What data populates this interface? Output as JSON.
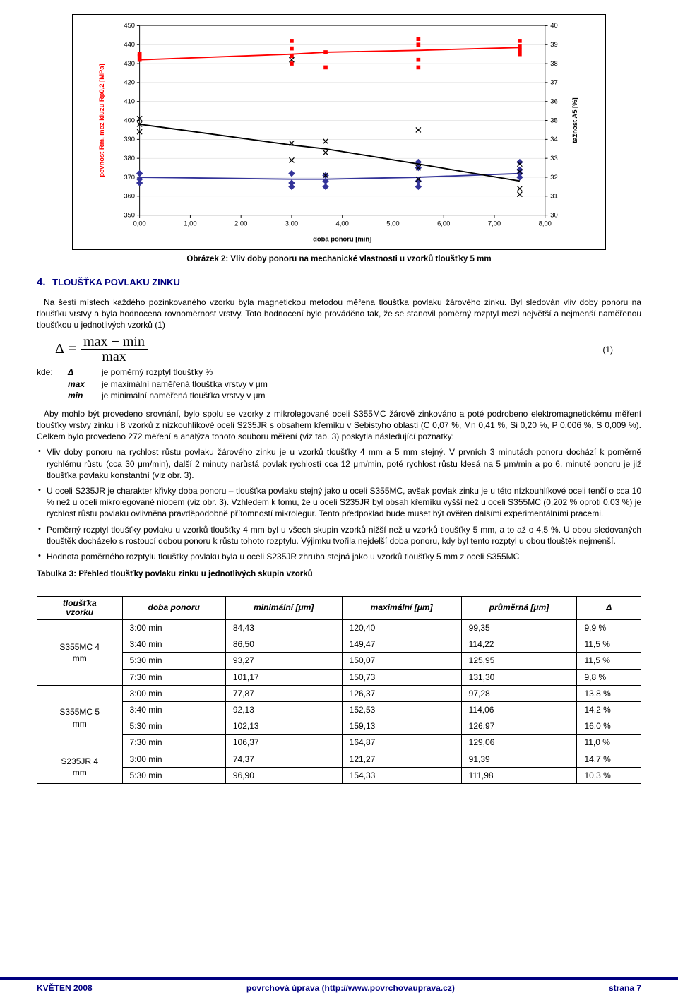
{
  "chart": {
    "type": "dual-axis-line-scatter",
    "xlabel": "doba ponoru [min]",
    "ylabel_left": "pevnost Rm, mez kluzu Rp0,2 [MPa]",
    "ylabel_right": "tažnost A5 [%]",
    "background_color": "#ffffff",
    "plot_border_color": "#000000",
    "grid_color": "#d0d0d0",
    "axis_font_size": 10,
    "label_font_size": 10,
    "ylabel_left_color": "#ff0000",
    "ylabel_right_color": "#000000",
    "xlim": [
      0.0,
      8.0
    ],
    "xtick_step": 1.0,
    "xtick_labels": [
      "0,00",
      "1,00",
      "2,00",
      "3,00",
      "4,00",
      "5,00",
      "6,00",
      "7,00",
      "8,00"
    ],
    "ylim_left": [
      350,
      450
    ],
    "ytick_left_step": 10,
    "ylim_right": [
      30,
      40
    ],
    "ytick_right_step": 1,
    "series": [
      {
        "name": "Rm",
        "axis": "left",
        "marker": "square",
        "marker_size": 6,
        "marker_color": "#ff0000",
        "line_color": "#ff0000",
        "line_width": 2,
        "x": [
          0.0,
          3.0,
          3.67,
          5.5,
          7.5
        ],
        "y_line": [
          432,
          435,
          436,
          437,
          438.5
        ],
        "y_points": [
          [
            432,
            434,
            435
          ],
          [
            430,
            434,
            438,
            442
          ],
          [
            428,
            436
          ],
          [
            428,
            432,
            440,
            443
          ],
          [
            435,
            437,
            439,
            442
          ]
        ]
      },
      {
        "name": "Rp0.2",
        "axis": "left",
        "marker": "diamond",
        "marker_size": 7,
        "marker_color": "#333399",
        "line_color": "#333399",
        "line_width": 2,
        "x": [
          0.0,
          3.0,
          3.67,
          5.5,
          7.5
        ],
        "y_line": [
          370,
          369,
          369,
          370,
          372
        ],
        "y_points": [
          [
            367,
            369,
            372
          ],
          [
            365,
            367,
            372
          ],
          [
            365,
            368,
            371
          ],
          [
            365,
            368,
            375,
            378
          ],
          [
            370,
            372,
            374,
            378
          ]
        ]
      },
      {
        "name": "A5",
        "axis": "right",
        "marker": "x",
        "marker_size": 6,
        "marker_color": "#000000",
        "line_color": "#000000",
        "line_width": 2,
        "x": [
          0.0,
          3.0,
          3.67,
          5.5,
          7.5
        ],
        "y_line": [
          34.8,
          33.7,
          33.5,
          32.7,
          31.8
        ],
        "y_points": [
          [
            34.4,
            34.8,
            35.1
          ],
          [
            32.9,
            33.8,
            38.2
          ],
          [
            32.1,
            33.3,
            33.9
          ],
          [
            31.9,
            32.5,
            34.5
          ],
          [
            31.1,
            31.4,
            32.3,
            32.7
          ]
        ]
      }
    ]
  },
  "caption_chart": "Obrázek 2: Vliv doby ponoru na mechanické vlastnosti u vzorků tloušťky 5 mm",
  "section_num": "4.",
  "section_title": "TLOUŠŤKA POVLAKU ZINKU",
  "para1": "Na šesti místech každého pozinkovaného vzorku byla magnetickou metodou měřena tloušťka povlaku žárového zinku. Byl sledován vliv doby ponoru na tloušťku vrstvy a byla hodnocena rovnoměrnost vrstvy. Toto hodnocení bylo prováděno tak, že se stanovil poměrný rozptyl mezi největší a nejmenší naměřenou tloušťkou u jednotlivých vzorků (1)",
  "formula": {
    "delta": "Δ",
    "eq": "=",
    "top": "max − min",
    "bot": "max",
    "eqnum": "(1)"
  },
  "defs": {
    "kde": "kde:",
    "d1_sym": "Δ",
    "d1": "je poměrný rozptyl tloušťky %",
    "d2_sym": "max",
    "d2": "je maximální naměřená tloušťka vrstvy v μm",
    "d3_sym": "min",
    "d3": "je minimální naměřená tloušťka vrstvy v μm"
  },
  "para2": "Aby mohlo být provedeno srovnání, bylo spolu se vzorky z mikrolegované oceli S355MC žárově zinkováno a poté podrobeno elektromagnetickému měření tloušťky vrstvy zinku i 8 vzorků z nízkouhlíkové oceli S235JR s obsahem křemíku v Sebistyho oblasti (C 0,07 %, Mn 0,41 %, Si 0,20 %, P 0,006 %, S 0,009 %). Celkem bylo provedeno 272 měření a analýza tohoto souboru měření (viz tab. 3) poskytla následující poznatky:",
  "bullets": [
    "Vliv doby ponoru na rychlost růstu povlaku žárového zinku je u vzorků tloušťky 4 mm a 5 mm stejný. V prvních 3 minutách ponoru dochází k poměrně rychlému růstu (cca 30 μm/min), další 2 minuty narůstá povlak rychlostí cca 12 μm/min, poté rychlost růstu klesá na 5 μm/min a po 6. minutě ponoru je již tloušťka povlaku konstantní (viz obr. 3).",
    "U oceli S235JR je charakter křivky doba ponoru – tloušťka povlaku stejný jako u oceli S355MC, avšak povlak zinku je u této nízkouhlíkové oceli tenčí o cca 10 % než u oceli mikrolegované niobem (viz obr. 3). Vzhledem k tomu, že u oceli S235JR byl obsah křemíku vyšší než u oceli S355MC (0,202 % oproti 0,03 %) je rychlost růstu povlaku ovlivněna pravděpodobně přítomností mikrolegur. Tento předpoklad bude muset být ověřen dalšími experimentálními pracemi.",
    "Poměrný rozptyl tloušťky povlaku u vzorků tloušťky 4 mm byl u všech skupin vzorků nižší než u vzorků tloušťky 5 mm, a to až o 4,5 %. U obou sledovaných tlouštěk docházelo s rostoucí dobou ponoru k růstu tohoto rozptylu. Výjimku tvořila nejdelší doba ponoru, kdy byl tento rozptyl u obou tlouštěk nejmenší.",
    "Hodnota poměrného rozptylu tloušťky povlaku byla u oceli S235JR zhruba stejná jako u vzorků tloušťky 5 mm z oceli S355MC"
  ],
  "table_caption": "Tabulka 3: Přehled tloušťky povlaku zinku u jednotlivých skupin vzorků",
  "table": {
    "columns": [
      "tloušťka vzorku",
      "doba ponoru",
      "minimální [μm]",
      "maximální [μm]",
      "průměrná [μm]",
      "Δ"
    ],
    "groups": [
      {
        "label": "S355MC 4 mm",
        "rows": [
          [
            "3:00 min",
            "84,43",
            "120,40",
            "99,35",
            "9,9 %"
          ],
          [
            "3:40 min",
            "86,50",
            "149,47",
            "114,22",
            "11,5 %"
          ],
          [
            "5:30 min",
            "93,27",
            "150,07",
            "125,95",
            "11,5 %"
          ],
          [
            "7:30 min",
            "101,17",
            "150,73",
            "131,30",
            "9,8 %"
          ]
        ]
      },
      {
        "label": "S355MC 5 mm",
        "rows": [
          [
            "3:00 min",
            "77,87",
            "126,37",
            "97,28",
            "13,8 %"
          ],
          [
            "3:40 min",
            "92,13",
            "152,53",
            "114,06",
            "14,2 %"
          ],
          [
            "5:30 min",
            "102,13",
            "159,13",
            "126,97",
            "16,0 %"
          ],
          [
            "7:30 min",
            "106,37",
            "164,87",
            "129,06",
            "11,0 %"
          ]
        ]
      },
      {
        "label": "S235JR 4 mm",
        "rows": [
          [
            "3:00 min",
            "74,37",
            "121,27",
            "91,39",
            "14,7 %"
          ],
          [
            "5:30 min",
            "96,90",
            "154,33",
            "111,98",
            "10,3 %"
          ]
        ]
      }
    ]
  },
  "footer": {
    "left": "KVĚTEN 2008",
    "center": "povrchová úprava (http://www.povrchovauprava.cz)",
    "right": "strana 7"
  }
}
